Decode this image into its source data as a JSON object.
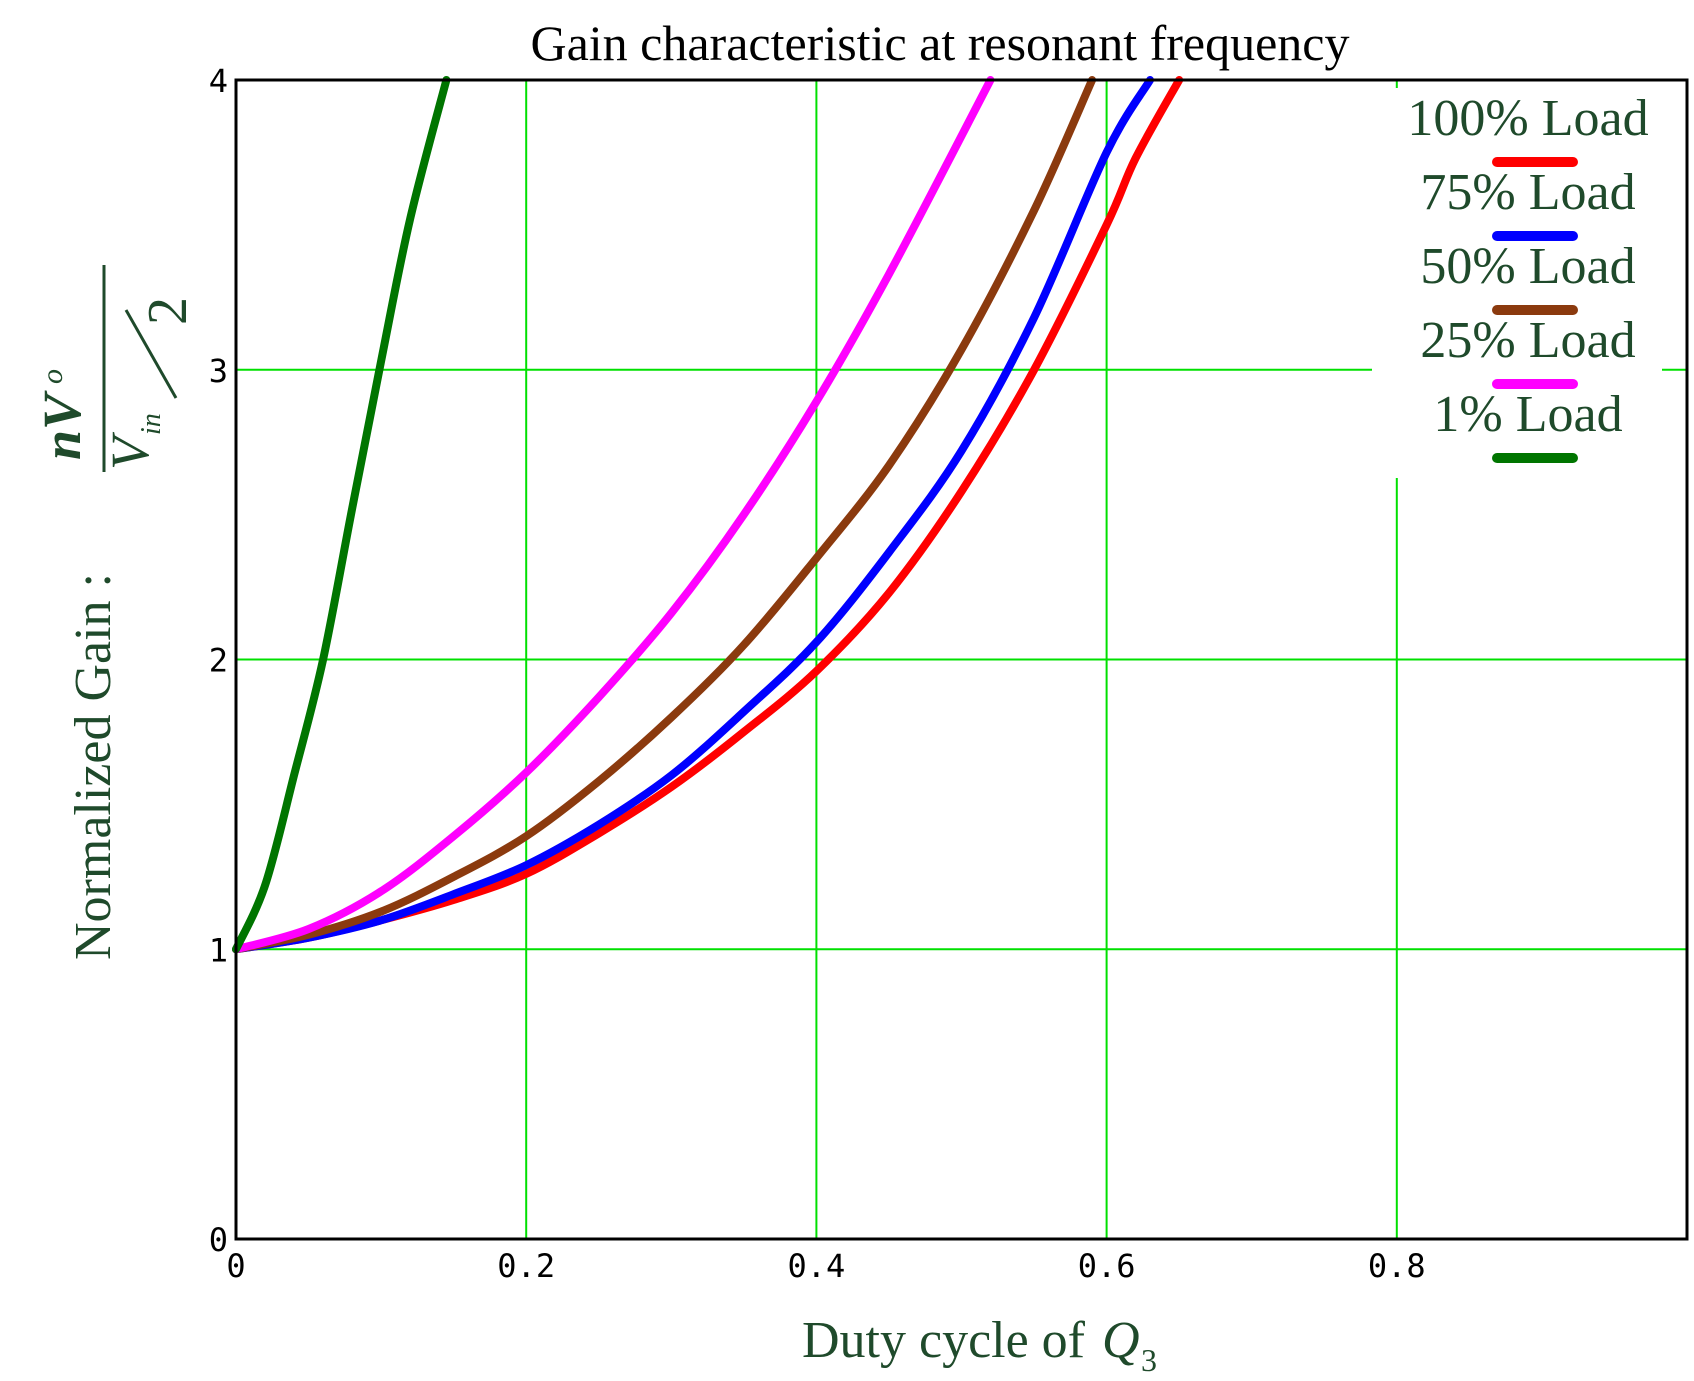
{
  "chart_data": {
    "type": "line",
    "title": "Gain characteristic at resonant frequency",
    "xlabel": "Duty cycle of",
    "xlabel_symbol": "Q",
    "xlabel_subscript": "3",
    "ylabel": "Normalized Gain :",
    "ylabel_formula": {
      "numerator": "nV",
      "numerator_sub": "o",
      "denominator": "V",
      "denominator_sub": "in",
      "divisor": "2"
    },
    "xlim": [
      0,
      1
    ],
    "ylim": [
      0,
      4
    ],
    "x_ticks": [
      "0",
      "0.2",
      "0.4",
      "0.6",
      "0.8"
    ],
    "y_ticks": [
      "0",
      "1",
      "2",
      "3",
      "4"
    ],
    "grid": true,
    "legend_position": "top-right",
    "colors": {
      "grid": "#00e000",
      "text": "#1f4a2b",
      "axis": "#000000"
    },
    "series": [
      {
        "name": "100% Load",
        "color": "#ff0000",
        "x": [
          0,
          0.05,
          0.1,
          0.15,
          0.2,
          0.25,
          0.3,
          0.35,
          0.4,
          0.45,
          0.5,
          0.55,
          0.6,
          0.62,
          0.65
        ],
        "y": [
          1,
          1.04,
          1.1,
          1.17,
          1.26,
          1.4,
          1.56,
          1.75,
          1.96,
          2.23,
          2.58,
          3.0,
          3.5,
          3.73,
          4.0
        ]
      },
      {
        "name": "75% Load",
        "color": "#0000ff",
        "x": [
          0,
          0.05,
          0.1,
          0.15,
          0.2,
          0.25,
          0.3,
          0.35,
          0.4,
          0.45,
          0.5,
          0.55,
          0.6,
          0.63
        ],
        "y": [
          1,
          1.04,
          1.1,
          1.19,
          1.29,
          1.43,
          1.6,
          1.82,
          2.06,
          2.37,
          2.72,
          3.18,
          3.75,
          4.0
        ]
      },
      {
        "name": "50% Load",
        "color": "#8b3a0e",
        "x": [
          0,
          0.05,
          0.1,
          0.15,
          0.2,
          0.25,
          0.3,
          0.35,
          0.4,
          0.45,
          0.5,
          0.55,
          0.59
        ],
        "y": [
          1,
          1.05,
          1.13,
          1.25,
          1.39,
          1.58,
          1.8,
          2.05,
          2.35,
          2.67,
          3.07,
          3.55,
          4.0
        ]
      },
      {
        "name": "25% Load",
        "color": "#ff00ff",
        "x": [
          0,
          0.05,
          0.1,
          0.15,
          0.2,
          0.25,
          0.3,
          0.35,
          0.4,
          0.45,
          0.52
        ],
        "y": [
          1,
          1.07,
          1.2,
          1.39,
          1.61,
          1.87,
          2.16,
          2.5,
          2.89,
          3.33,
          4.0
        ]
      },
      {
        "name": "1% Load",
        "color": "#007500",
        "x": [
          0,
          0.02,
          0.04,
          0.06,
          0.08,
          0.1,
          0.12,
          0.145
        ],
        "y": [
          1,
          1.22,
          1.6,
          2.0,
          2.52,
          3.03,
          3.52,
          4.0
        ]
      }
    ]
  }
}
